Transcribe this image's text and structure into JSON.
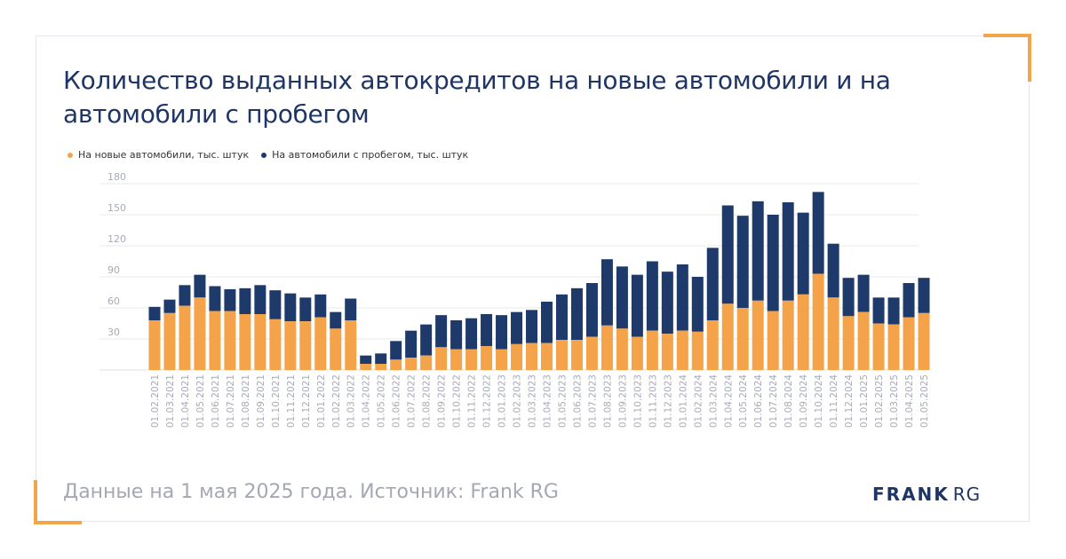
{
  "title": "Количество выданных автокредитов на новые автомобили и на автомобили с пробегом",
  "colors": {
    "new": "#f5a34b",
    "used": "#1d3a6b",
    "title": "#1e3566",
    "accent": "#f4a54a"
  },
  "legend": [
    {
      "label": "На новые автомобили, тыс. штук",
      "color": "#f5a34b"
    },
    {
      "label": "На автомобили с пробегом, тыс. штук",
      "color": "#1d3a6b"
    }
  ],
  "footer": {
    "note": "Данные на 1 мая 2025 года. Источник: Frank RG",
    "logo_main": "FRANK",
    "logo_sub": "RG"
  },
  "chart_data": {
    "type": "bar",
    "stacked": true,
    "ylim": [
      0,
      180
    ],
    "yticks": [
      30,
      60,
      90,
      120,
      150,
      180
    ],
    "grid": true,
    "legend_position": "top-left",
    "categories": [
      "01.02.2021",
      "01.03.2021",
      "01.04.2021",
      "01.05.2021",
      "01.06.2021",
      "01.07.2021",
      "01.08.2021",
      "01.09.2021",
      "01.10.2021",
      "01.11.2021",
      "01.12.2021",
      "01.01.2022",
      "01.02.2022",
      "01.03.2022",
      "01.04.2022",
      "01.05.2022",
      "01.06.2022",
      "01.07.2022",
      "01.08.2022",
      "01.09.2022",
      "01.10.2022",
      "01.11.2022",
      "01.12.2022",
      "01.01.2023",
      "01.02.2023",
      "01.03.2023",
      "01.04.2023",
      "01.05.2023",
      "01.06.2023",
      "01.07.2023",
      "01.08.2023",
      "01.09.2023",
      "01.10.2023",
      "01.11.2023",
      "01.12.2023",
      "01.01.2024",
      "01.02.2024",
      "01.03.2024",
      "01.04.2024",
      "01.05.2024",
      "01.06.2024",
      "01.07.2024",
      "01.08.2024",
      "01.09.2024",
      "01.10.2024",
      "01.11.2024",
      "01.12.2024",
      "01.01.2025",
      "01.02.2025",
      "01.03.2025",
      "01.04.2025",
      "01.05.2025"
    ],
    "series": [
      {
        "name": "На новые автомобили, тыс. штук",
        "values": [
          48,
          55,
          62,
          70,
          57,
          57,
          54,
          54,
          49,
          47,
          47,
          51,
          40,
          48,
          6,
          6,
          10,
          12,
          14,
          22,
          20,
          20,
          23,
          20,
          25,
          26,
          26,
          29,
          29,
          32,
          43,
          40,
          32,
          38,
          35,
          38,
          37,
          48,
          64,
          60,
          67,
          57,
          67,
          73,
          93,
          70,
          52,
          56,
          45,
          44,
          51,
          55
        ]
      },
      {
        "name": "На автомобили с пробегом, тыс. штук",
        "values": [
          13,
          13,
          20,
          22,
          24,
          21,
          25,
          28,
          28,
          27,
          23,
          22,
          16,
          21,
          8,
          10,
          18,
          26,
          30,
          31,
          28,
          30,
          31,
          33,
          31,
          32,
          40,
          44,
          50,
          52,
          64,
          60,
          60,
          67,
          60,
          64,
          53,
          70,
          95,
          89,
          96,
          93,
          95,
          79,
          79,
          52,
          37,
          36,
          25,
          26,
          33,
          34
        ]
      }
    ]
  }
}
